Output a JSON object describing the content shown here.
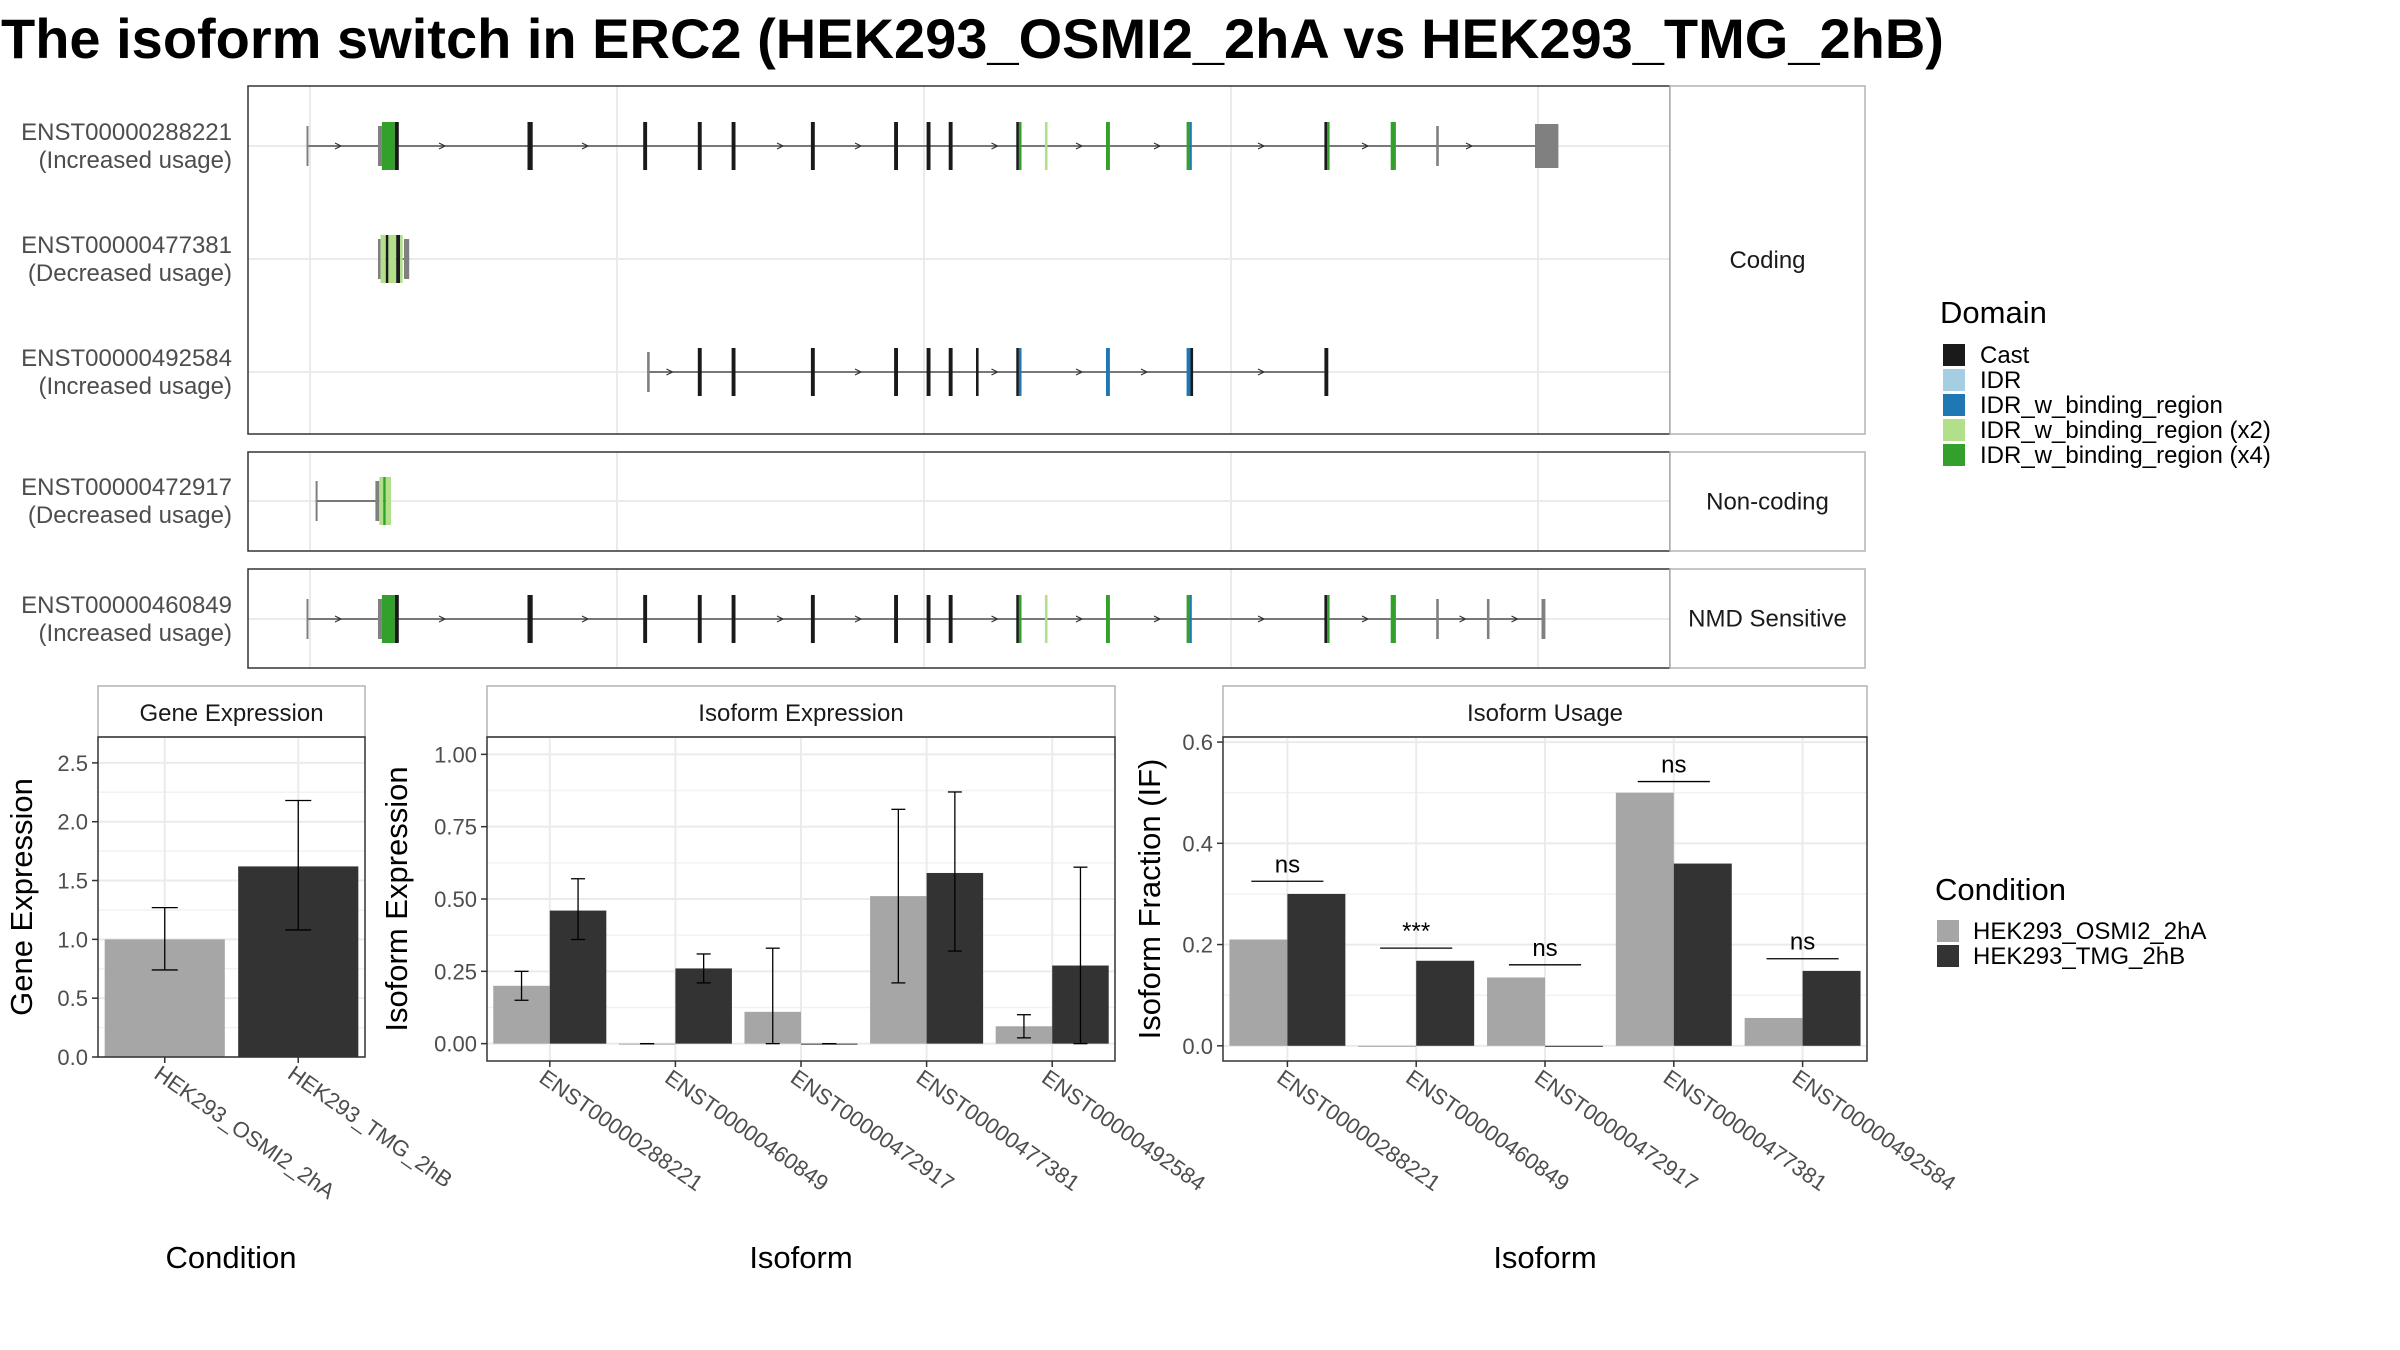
{
  "title": "The isoform switch in ERC2 (HEK293_OSMI2_2hA vs HEK293_TMG_2hB)",
  "transcript_panel": {
    "x_extent": [
      0,
      1000
    ],
    "sections": [
      {
        "label": "Coding",
        "transcripts": [
          "ENST00000288221",
          "ENST00000477381",
          "ENST00000492584"
        ]
      },
      {
        "label": "Non-coding",
        "transcripts": [
          "ENST00000472917"
        ]
      },
      {
        "label": "NMD Sensitive",
        "transcripts": [
          "ENST00000460849"
        ]
      }
    ],
    "transcripts": {
      "ENST00000288221": {
        "name": "ENST00000288221",
        "usage": "(Increased usage)",
        "start": 5,
        "end": 960,
        "exons": [
          {
            "pos": 5,
            "w": 1,
            "d": "utr"
          },
          {
            "pos": 60,
            "w": 3,
            "d": "utr"
          },
          {
            "pos": 63,
            "w": 10,
            "d": "IDR_w_binding_region (x4)"
          },
          {
            "pos": 73,
            "w": 3,
            "d": "Cast"
          },
          {
            "pos": 175,
            "w": 4,
            "d": "Cast"
          },
          {
            "pos": 264,
            "w": 3,
            "d": "Cast"
          },
          {
            "pos": 306,
            "w": 3,
            "d": "Cast"
          },
          {
            "pos": 332,
            "w": 3,
            "d": "Cast"
          },
          {
            "pos": 393,
            "w": 3,
            "d": "Cast"
          },
          {
            "pos": 457,
            "w": 3,
            "d": "Cast"
          },
          {
            "pos": 482,
            "w": 3,
            "d": "Cast"
          },
          {
            "pos": 499,
            "w": 3,
            "d": "Cast"
          },
          {
            "pos": 551,
            "w": 2,
            "d": "Cast"
          },
          {
            "pos": 553,
            "w": 2,
            "d": "IDR_w_binding_region (x4)"
          },
          {
            "pos": 573,
            "w": 2,
            "d": "IDR_w_binding_region (x2)"
          },
          {
            "pos": 620,
            "w": 3,
            "d": "IDR_w_binding_region (x4)"
          },
          {
            "pos": 682,
            "w": 2,
            "d": "IDR_w_binding_region (x4)"
          },
          {
            "pos": 684,
            "w": 2,
            "d": "IDR_w_binding_region"
          },
          {
            "pos": 788,
            "w": 2,
            "d": "Cast"
          },
          {
            "pos": 790,
            "w": 2,
            "d": "IDR_w_binding_region (x4)"
          },
          {
            "pos": 839,
            "w": 4,
            "d": "IDR_w_binding_region (x4)"
          },
          {
            "pos": 874,
            "w": 2,
            "d": "utr"
          },
          {
            "pos": 950,
            "w": 18,
            "d": "utr",
            "tall": true
          }
        ],
        "arrows": [
          30,
          110,
          220,
          370,
          430,
          535,
          600,
          660,
          740,
          820,
          900
        ]
      },
      "ENST00000477381": {
        "name": "ENST00000477381",
        "usage": "(Decreased usage)",
        "start": 60,
        "end": 84,
        "exons": [
          {
            "pos": 60,
            "w": 2,
            "d": "utr"
          },
          {
            "pos": 62,
            "w": 4,
            "d": "IDR_w_binding_region (x2)"
          },
          {
            "pos": 66,
            "w": 2,
            "d": "Cast"
          },
          {
            "pos": 68,
            "w": 6,
            "d": "IDR_w_binding_region (x2)"
          },
          {
            "pos": 74,
            "w": 3,
            "d": "Cast"
          },
          {
            "pos": 77,
            "w": 2,
            "d": "IDR_w_binding_region (x2)"
          },
          {
            "pos": 80,
            "w": 4,
            "d": "utr"
          }
        ],
        "arrows": []
      },
      "ENST00000492584": {
        "name": "ENST00000492584",
        "usage": "(Increased usage)",
        "start": 267,
        "end": 788,
        "exons": [
          {
            "pos": 267,
            "w": 2,
            "d": "utr"
          },
          {
            "pos": 306,
            "w": 3,
            "d": "Cast"
          },
          {
            "pos": 332,
            "w": 3,
            "d": "Cast"
          },
          {
            "pos": 393,
            "w": 3,
            "d": "Cast"
          },
          {
            "pos": 457,
            "w": 3,
            "d": "Cast"
          },
          {
            "pos": 482,
            "w": 3,
            "d": "Cast"
          },
          {
            "pos": 499,
            "w": 3,
            "d": "Cast"
          },
          {
            "pos": 520,
            "w": 2,
            "d": "Cast"
          },
          {
            "pos": 551,
            "w": 2,
            "d": "Cast"
          },
          {
            "pos": 553,
            "w": 2,
            "d": "IDR_w_binding_region"
          },
          {
            "pos": 620,
            "w": 3,
            "d": "IDR_w_binding_region"
          },
          {
            "pos": 682,
            "w": 3,
            "d": "IDR_w_binding_region"
          },
          {
            "pos": 685,
            "w": 2,
            "d": "Cast"
          },
          {
            "pos": 788,
            "w": 3,
            "d": "Cast"
          }
        ],
        "arrows": [
          285,
          430,
          535,
          600,
          650,
          740
        ]
      },
      "ENST00000472917": {
        "name": "ENST00000472917",
        "usage": "(Decreased usage)",
        "start": 12,
        "end": 70,
        "exons": [
          {
            "pos": 12,
            "w": 1,
            "d": "utr"
          },
          {
            "pos": 58,
            "w": 3,
            "d": "utr"
          },
          {
            "pos": 61,
            "w": 3,
            "d": "IDR_w_binding_region (x2)"
          },
          {
            "pos": 64,
            "w": 2,
            "d": "IDR_w_binding_region (x4)"
          },
          {
            "pos": 66,
            "w": 4,
            "d": "IDR_w_binding_region (x2)"
          }
        ],
        "arrows": []
      },
      "ENST00000460849": {
        "name": "ENST00000460849",
        "usage": "(Increased usage)",
        "start": 5,
        "end": 955,
        "exons": [
          {
            "pos": 5,
            "w": 1,
            "d": "utr"
          },
          {
            "pos": 60,
            "w": 3,
            "d": "utr"
          },
          {
            "pos": 63,
            "w": 10,
            "d": "IDR_w_binding_region (x4)"
          },
          {
            "pos": 73,
            "w": 3,
            "d": "Cast"
          },
          {
            "pos": 175,
            "w": 4,
            "d": "Cast"
          },
          {
            "pos": 264,
            "w": 3,
            "d": "Cast"
          },
          {
            "pos": 306,
            "w": 3,
            "d": "Cast"
          },
          {
            "pos": 332,
            "w": 3,
            "d": "Cast"
          },
          {
            "pos": 393,
            "w": 3,
            "d": "Cast"
          },
          {
            "pos": 457,
            "w": 3,
            "d": "Cast"
          },
          {
            "pos": 482,
            "w": 3,
            "d": "Cast"
          },
          {
            "pos": 499,
            "w": 3,
            "d": "Cast"
          },
          {
            "pos": 551,
            "w": 2,
            "d": "Cast"
          },
          {
            "pos": 553,
            "w": 2,
            "d": "IDR_w_binding_region (x4)"
          },
          {
            "pos": 573,
            "w": 2,
            "d": "IDR_w_binding_region (x2)"
          },
          {
            "pos": 620,
            "w": 3,
            "d": "IDR_w_binding_region (x4)"
          },
          {
            "pos": 682,
            "w": 2,
            "d": "IDR_w_binding_region (x4)"
          },
          {
            "pos": 684,
            "w": 2,
            "d": "IDR_w_binding_region"
          },
          {
            "pos": 788,
            "w": 2,
            "d": "Cast"
          },
          {
            "pos": 790,
            "w": 2,
            "d": "IDR_w_binding_region (x4)"
          },
          {
            "pos": 839,
            "w": 4,
            "d": "IDR_w_binding_region (x4)"
          },
          {
            "pos": 874,
            "w": 2,
            "d": "utr"
          },
          {
            "pos": 913,
            "w": 2,
            "d": "utr"
          },
          {
            "pos": 955,
            "w": 3,
            "d": "utr"
          }
        ],
        "arrows": [
          30,
          110,
          220,
          370,
          430,
          535,
          600,
          660,
          740,
          820,
          895,
          935
        ]
      }
    }
  },
  "domain_legend": {
    "title": "Domain",
    "items": [
      {
        "name": "Cast",
        "color": "#1a1a1a"
      },
      {
        "name": "IDR",
        "color": "#a6cee3"
      },
      {
        "name": "IDR_w_binding_region",
        "color": "#1f78b4"
      },
      {
        "name": "IDR_w_binding_region (x2)",
        "color": "#b2df8a"
      },
      {
        "name": "IDR_w_binding_region (x4)",
        "color": "#33a02c"
      }
    ],
    "utr_color": "#808080"
  },
  "condition_legend": {
    "title": "Condition",
    "items": [
      {
        "name": "HEK293_OSMI2_2hA",
        "color": "#a6a6a6"
      },
      {
        "name": "HEK293_TMG_2hB",
        "color": "#333333"
      }
    ]
  },
  "chart_data": [
    {
      "type": "bar",
      "title": "Gene Expression",
      "xlabel": "Condition",
      "ylabel": "Gene Expression",
      "categories": [
        "HEK293_OSMI2_2hA",
        "HEK293_TMG_2hB"
      ],
      "values": [
        1.0,
        1.62
      ],
      "error": [
        [
          0.74,
          1.27
        ],
        [
          1.08,
          2.18
        ]
      ],
      "colors": [
        "#a6a6a6",
        "#333333"
      ],
      "ylim": [
        0,
        2.72
      ],
      "yticks": [
        0.0,
        0.5,
        1.0,
        1.5,
        2.0,
        2.5
      ],
      "tick_format": 1
    },
    {
      "type": "bar",
      "title": "Isoform Expression",
      "xlabel": "Isoform",
      "ylabel": "Isoform Expression",
      "categories": [
        "ENST00000288221",
        "ENST00000460849",
        "ENST00000472917",
        "ENST00000477381",
        "ENST00000492584"
      ],
      "series": [
        {
          "name": "HEK293_OSMI2_2hA",
          "color": "#a6a6a6",
          "values": [
            0.2,
            0.0,
            0.11,
            0.51,
            0.06
          ],
          "error": [
            [
              0.15,
              0.25
            ],
            [
              0,
              0
            ],
            [
              0.0,
              0.33
            ],
            [
              0.21,
              0.81
            ],
            [
              0.02,
              0.1
            ]
          ]
        },
        {
          "name": "HEK293_TMG_2hB",
          "color": "#333333",
          "values": [
            0.46,
            0.26,
            0.0,
            0.59,
            0.27
          ],
          "error": [
            [
              0.36,
              0.57
            ],
            [
              0.21,
              0.31
            ],
            [
              0,
              0
            ],
            [
              0.32,
              0.87
            ],
            [
              0.0,
              0.61
            ]
          ]
        }
      ],
      "ylim": [
        -0.06,
        1.06
      ],
      "yticks": [
        0.0,
        0.25,
        0.5,
        0.75,
        1.0
      ],
      "tick_format": 2
    },
    {
      "type": "bar",
      "title": "Isoform Usage",
      "xlabel": "Isoform",
      "ylabel": "Isoform Fraction (IF)",
      "categories": [
        "ENST00000288221",
        "ENST00000460849",
        "ENST00000472917",
        "ENST00000477381",
        "ENST00000492584"
      ],
      "series": [
        {
          "name": "HEK293_OSMI2_2hA",
          "color": "#a6a6a6",
          "values": [
            0.21,
            0.0,
            0.135,
            0.5,
            0.055
          ]
        },
        {
          "name": "HEK293_TMG_2hB",
          "color": "#333333",
          "values": [
            0.3,
            0.168,
            0.0,
            0.36,
            0.148
          ]
        }
      ],
      "significance": [
        {
          "label": "ns",
          "y": 0.325
        },
        {
          "label": "***",
          "y": 0.193
        },
        {
          "label": "ns",
          "y": 0.16
        },
        {
          "label": "ns",
          "y": 0.522
        },
        {
          "label": "ns",
          "y": 0.172
        }
      ],
      "ylim": [
        -0.03,
        0.61
      ],
      "yticks": [
        0.0,
        0.2,
        0.4,
        0.6
      ],
      "tick_format": 1
    }
  ]
}
